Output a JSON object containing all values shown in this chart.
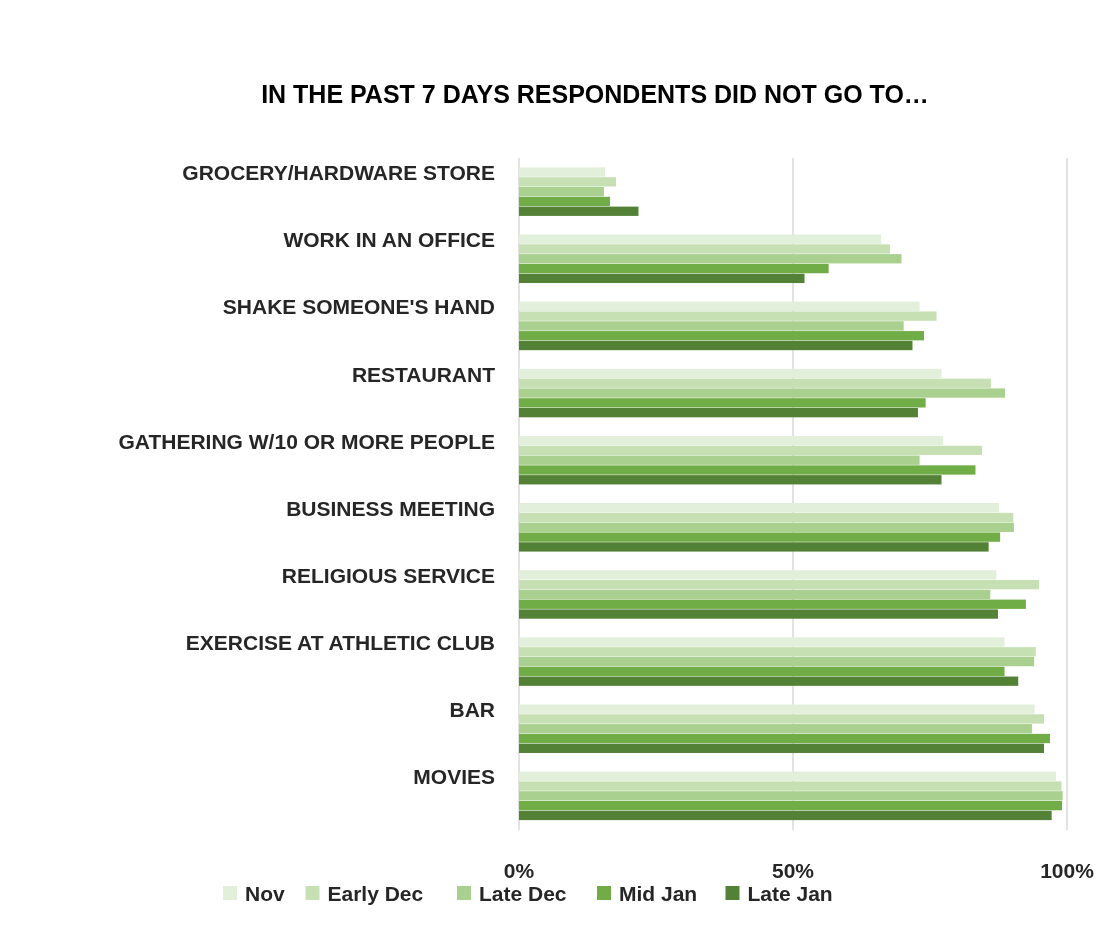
{
  "chart_data": {
    "type": "bar",
    "orientation": "horizontal",
    "title": "IN THE PAST 7 DAYS RESPONDENTS DID NOT GO TO…",
    "categories": [
      "GROCERY/HARDWARE STORE",
      "WORK IN AN OFFICE",
      "SHAKE SOMEONE'S HAND",
      "RESTAURANT",
      "GATHERING W/10 OR MORE PEOPLE",
      "BUSINESS MEETING",
      "RELIGIOUS SERVICE",
      "EXERCISE AT ATHLETIC CLUB",
      "BAR",
      "MOVIES"
    ],
    "series": [
      {
        "name": "Nov",
        "color": "#e2efda",
        "values": [
          15.7,
          66.1,
          73.1,
          77.1,
          77.4,
          87.6,
          87.1,
          88.6,
          94.1,
          98.0
        ]
      },
      {
        "name": "Early Dec",
        "color": "#c6e0b4",
        "values": [
          17.7,
          67.7,
          76.2,
          86.1,
          84.5,
          90.2,
          94.9,
          94.3,
          95.8,
          99.0
        ]
      },
      {
        "name": "Late Dec",
        "color": "#a9d08e",
        "values": [
          15.5,
          69.8,
          70.2,
          88.7,
          73.1,
          90.3,
          86.0,
          94.0,
          93.6,
          99.2
        ]
      },
      {
        "name": "Mid Jan",
        "color": "#70ad47",
        "values": [
          16.6,
          56.5,
          73.9,
          74.2,
          83.3,
          87.8,
          92.5,
          88.6,
          96.9,
          99.1
        ]
      },
      {
        "name": "Late Jan",
        "color": "#538135",
        "values": [
          21.8,
          52.1,
          71.8,
          72.8,
          77.1,
          85.7,
          87.4,
          91.1,
          95.8,
          97.2
        ]
      }
    ],
    "xlim": [
      0,
      100
    ],
    "xticks": [
      {
        "value": 0,
        "label": "0%"
      },
      {
        "value": 50,
        "label": "50%"
      },
      {
        "value": 100,
        "label": "100%"
      }
    ],
    "grid": "x",
    "legend": "bottom"
  }
}
